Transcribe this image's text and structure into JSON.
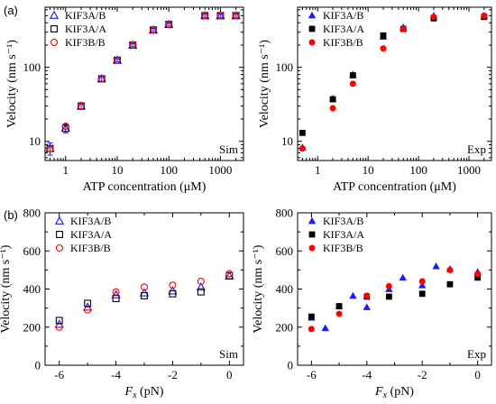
{
  "panel_labels": [
    "(a)",
    "(b)"
  ],
  "colors": {
    "KIF3A/B": "#1a1aff",
    "KIF3A/A": "#000000",
    "KIF3B/B": "#ff0000"
  },
  "chart_data": [
    {
      "type": "scatter",
      "scale": {
        "x": "log",
        "y": "log"
      },
      "xlabel": "ATP concentration (μM)",
      "ylabel": "Velocity (nm s⁻¹)",
      "xlim": [
        0.4,
        2800
      ],
      "ylim": [
        5.5,
        650
      ],
      "xticks": [
        1,
        10,
        100,
        1000
      ],
      "xtick_labels": [
        "1",
        "10",
        "100",
        "1000"
      ],
      "yticks": [
        10,
        100
      ],
      "ytick_labels": [
        "10",
        "100"
      ],
      "tag": "Sim",
      "legend": "top-left",
      "markers": "open",
      "series": [
        {
          "name": "KIF3A/B",
          "x": [
            0.5,
            1,
            2,
            5,
            10,
            20,
            50,
            100,
            500,
            1000,
            2000
          ],
          "y": [
            8,
            15,
            30,
            70,
            125,
            200,
            320,
            380,
            500,
            500,
            500
          ],
          "err": [
            1.5,
            2,
            3,
            5,
            6,
            10,
            15,
            18,
            25,
            25,
            25
          ]
        },
        {
          "name": "KIF3A/A",
          "x": [
            0.5,
            1,
            2,
            5,
            10,
            20,
            50,
            100,
            500,
            1000,
            2000
          ],
          "y": [
            8,
            15,
            30,
            70,
            125,
            200,
            320,
            380,
            500,
            500,
            500
          ]
        },
        {
          "name": "KIF3B/B",
          "x": [
            0.5,
            1,
            2,
            5,
            10,
            20,
            50,
            100,
            500,
            1000,
            2000
          ],
          "y": [
            8,
            16,
            30,
            70,
            125,
            200,
            320,
            380,
            500,
            500,
            500
          ]
        }
      ]
    },
    {
      "type": "scatter",
      "scale": {
        "x": "log",
        "y": "log"
      },
      "xlabel": "ATP concentration (μM)",
      "ylabel": "Velocity (nm s⁻¹)",
      "xlim": [
        0.4,
        2800
      ],
      "ylim": [
        5.5,
        650
      ],
      "xticks": [
        1,
        10,
        100,
        1000
      ],
      "xtick_labels": [
        "1",
        "10",
        "100",
        "1000"
      ],
      "yticks": [
        10,
        100
      ],
      "ytick_labels": [
        "10",
        "100"
      ],
      "tag": "Exp",
      "legend": "top-left",
      "markers": "filled",
      "series": [
        {
          "name": "KIF3A/B",
          "x": [
            0.5,
            2,
            5,
            20,
            50,
            200,
            2000
          ],
          "y": [
            8.3,
            38,
            80,
            260,
            350,
            500,
            500
          ]
        },
        {
          "name": "KIF3A/A",
          "x": [
            0.5,
            2,
            5,
            20,
            50,
            200,
            2000
          ],
          "y": [
            13,
            37,
            78,
            270,
            330,
            460,
            480
          ]
        },
        {
          "name": "KIF3B/B",
          "x": [
            0.5,
            2,
            5,
            20,
            50,
            200,
            2000
          ],
          "y": [
            8,
            28,
            60,
            180,
            330,
            480,
            500
          ]
        }
      ]
    },
    {
      "type": "scatter",
      "scale": {
        "x": "linear",
        "y": "linear"
      },
      "xlabel": "F_x (pN)",
      "ylabel": "Velocity (nm s⁻¹)",
      "xlim": [
        -6.5,
        0.5
      ],
      "ylim": [
        0,
        800
      ],
      "xticks": [
        -6,
        -4,
        -2,
        0
      ],
      "xtick_labels": [
        "-6",
        "-4",
        "-2",
        "0"
      ],
      "yticks": [
        0,
        200,
        400,
        600,
        800
      ],
      "ytick_labels": [
        "0",
        "200",
        "400",
        "600",
        "800"
      ],
      "tag": "Sim",
      "legend": "top-left",
      "markers": "open",
      "series": [
        {
          "name": "KIF3A/B",
          "x": [
            -6,
            -5,
            -4,
            -3,
            -2,
            -1,
            0
          ],
          "y": [
            215,
            305,
            370,
            380,
            390,
            410,
            468
          ]
        },
        {
          "name": "KIF3A/A",
          "x": [
            -6,
            -5,
            -4,
            -3,
            -2,
            -1,
            0
          ],
          "y": [
            235,
            325,
            350,
            365,
            375,
            385,
            470
          ]
        },
        {
          "name": "KIF3B/B",
          "x": [
            -6,
            -5,
            -4,
            -3,
            -2,
            -1,
            0
          ],
          "y": [
            200,
            290,
            385,
            410,
            420,
            440,
            480
          ]
        }
      ]
    },
    {
      "type": "scatter",
      "scale": {
        "x": "linear",
        "y": "linear"
      },
      "xlabel": "F_x (pN)",
      "ylabel": "Velocity (nm s⁻¹)",
      "xlim": [
        -6.5,
        0.5
      ],
      "ylim": [
        0,
        800
      ],
      "xticks": [
        -6,
        -4,
        -2,
        0
      ],
      "xtick_labels": [
        "-6",
        "-4",
        "-2",
        "0"
      ],
      "yticks": [
        0,
        200,
        400,
        600,
        800
      ],
      "ytick_labels": [
        "0",
        "200",
        "400",
        "600",
        "800"
      ],
      "tag": "Exp",
      "legend": "top-left",
      "markers": "filled",
      "series": [
        {
          "name": "KIF3A/B",
          "x": [
            -6,
            -5.5,
            -5,
            -4.5,
            -4,
            -3.2,
            -2.7,
            -2,
            -1.5,
            -1,
            0
          ],
          "y": [
            250,
            195,
            310,
            365,
            305,
            400,
            460,
            420,
            520,
            505,
            490
          ]
        },
        {
          "name": "KIF3A/A",
          "x": [
            -6,
            -5,
            -4,
            -3.2,
            -2,
            -1,
            0
          ],
          "y": [
            255,
            310,
            360,
            360,
            375,
            425,
            460
          ]
        },
        {
          "name": "KIF3B/B",
          "x": [
            -6,
            -5,
            -4,
            -3.2,
            -2,
            -1,
            0
          ],
          "y": [
            190,
            270,
            365,
            415,
            440,
            500,
            480
          ]
        }
      ]
    }
  ]
}
